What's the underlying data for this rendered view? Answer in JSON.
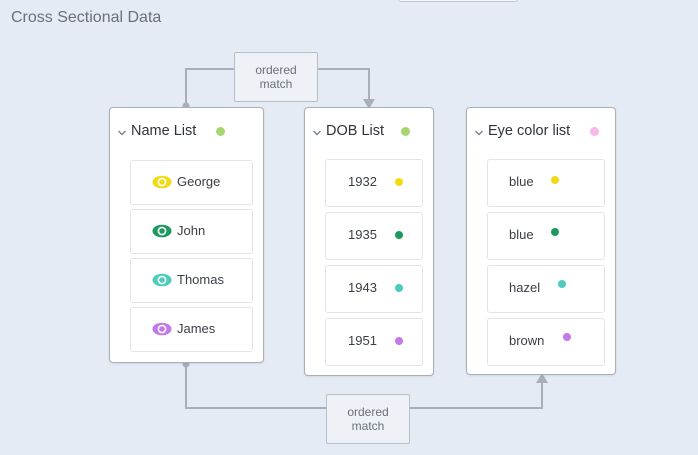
{
  "page": {
    "title": "Cross Sectional Data"
  },
  "connectors": {
    "top_label": [
      "ordered",
      "match"
    ],
    "bottom_label": [
      "ordered",
      "match"
    ]
  },
  "panels": [
    {
      "title": "Name List",
      "dot_color": "#a5d66f",
      "items": [
        {
          "label": "George",
          "icon": "eye-icon",
          "color": "#f2da13"
        },
        {
          "label": "John",
          "icon": "eye-icon",
          "color": "#1c9a5e"
        },
        {
          "label": "Thomas",
          "icon": "eye-icon",
          "color": "#4dcbbd"
        },
        {
          "label": "James",
          "icon": "eye-icon",
          "color": "#c478ea"
        }
      ]
    },
    {
      "title": "DOB List",
      "dot_color": "#a5d66f",
      "items": [
        {
          "label": "1932",
          "color": "#f2da13"
        },
        {
          "label": "1935",
          "color": "#1c9a5e"
        },
        {
          "label": "1943",
          "color": "#4dcbbd"
        },
        {
          "label": "1951",
          "color": "#c478ea"
        }
      ]
    },
    {
      "title": "Eye color list",
      "dot_color": "#f6b8e6",
      "items": [
        {
          "label": "blue",
          "color": "#f2da13"
        },
        {
          "label": "blue",
          "color": "#1c9a5e"
        },
        {
          "label": "hazel",
          "color": "#4dcbbd"
        },
        {
          "label": "brown",
          "color": "#c478ea"
        }
      ]
    }
  ]
}
